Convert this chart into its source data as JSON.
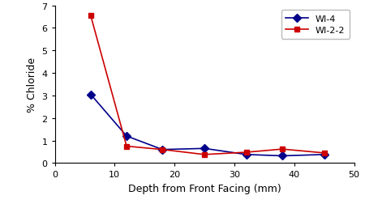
{
  "wi4_x": [
    6,
    12,
    18,
    25,
    32,
    38,
    45
  ],
  "wi4_y": [
    3.05,
    1.2,
    0.6,
    0.65,
    0.38,
    0.32,
    0.38
  ],
  "wi22_x": [
    6,
    12,
    18,
    25,
    32,
    38,
    45
  ],
  "wi22_y": [
    6.55,
    0.75,
    0.6,
    0.38,
    0.48,
    0.62,
    0.45
  ],
  "wi4_color": "#00008B",
  "wi22_color": "#CC0000",
  "wi4_label": "WI-4",
  "wi22_label": "WI-2-2",
  "xlabel": "Depth from Front Facing (mm)",
  "ylabel": "% Chloride",
  "xlim": [
    0,
    50
  ],
  "ylim": [
    0,
    7
  ],
  "yticks": [
    0,
    1,
    2,
    3,
    4,
    5,
    6,
    7
  ],
  "xticks": [
    0,
    10,
    20,
    30,
    40,
    50
  ],
  "background_color": "#ffffff",
  "marker_wi4": "D",
  "marker_wi22": "s",
  "markersize": 5,
  "linewidth": 1.2,
  "xlabel_fontsize": 9,
  "ylabel_fontsize": 9,
  "tick_fontsize": 8,
  "legend_fontsize": 8
}
